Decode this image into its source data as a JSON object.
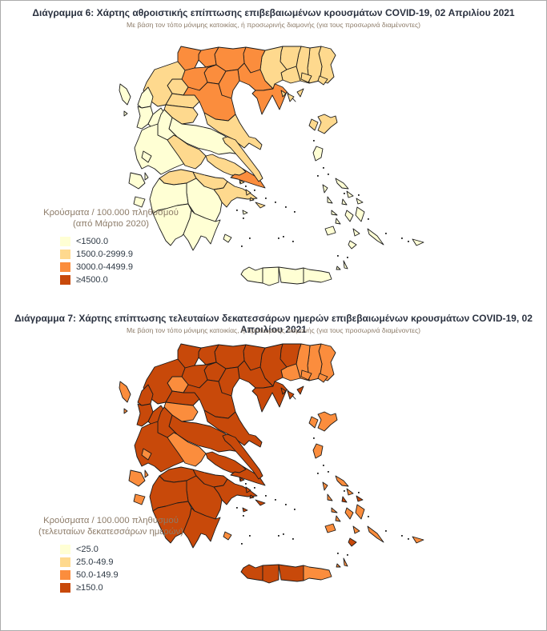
{
  "page": {
    "background": "#ffffff",
    "frame_border": "#ababab"
  },
  "palette": {
    "class1": "#FFFFD4",
    "class2": "#FED98E",
    "class3": "#FB8D3D",
    "class4": "#C8490A",
    "stroke": "#1a1a1a"
  },
  "maps": [
    {
      "title": "Διάγραμμα 6: Χάρτης αθροιστικής επίπτωσης επιβεβαιωμένων κρουσμάτων COVID-19, 02 Απριλίου 2021",
      "subtitle": "Με βάση τον τόπο μόνιμης κατοικίας, ή προσωρινής διαμονής (για τους προσωρινά διαμένοντες)",
      "legend": {
        "title_line1": "Κρούσματα / 100.000 πληθυσμού",
        "title_line2": "(από Μάρτιο 2020)",
        "items": [
          {
            "label": "<1500.0",
            "class_key": "class1"
          },
          {
            "label": "1500.0-2999.9",
            "class_key": "class2"
          },
          {
            "label": "3000.0-4499.9",
            "class_key": "class3"
          },
          {
            "label": "≥4500.0",
            "class_key": "class4"
          }
        ]
      }
    },
    {
      "title": "Διάγραμμα 7: Χάρτης επίπτωσης τελευταίων δεκατεσσάρων ημερών επιβεβαιωμένων κρουσμάτων COVID-19, 02 Απριλίου 2021",
      "subtitle": "Με βάση τον τόπο μόνιμης κατοικίας, ή προσωρινής διαμονής (για τους προσωρινά διαμένοντες)",
      "legend": {
        "title_line1": "Κρούσματα / 100.000 πληθυσμού",
        "title_line2": "(τελευταίων δεκατεσσάρων ημερών)",
        "items": [
          {
            "label": "<25.0",
            "class_key": "class1"
          },
          {
            "label": "25.0-49.9",
            "class_key": "class2"
          },
          {
            "label": "50.0-149.9",
            "class_key": "class3"
          },
          {
            "label": "≥150.0",
            "class_key": "class4"
          }
        ]
      }
    }
  ],
  "regions": [
    {
      "id": "evros",
      "map6": "class2",
      "map7": "class3"
    },
    {
      "id": "rodopi",
      "map6": "class2",
      "map7": "class3"
    },
    {
      "id": "xanthi",
      "map6": "class2",
      "map7": "class3"
    },
    {
      "id": "drama",
      "map6": "class2",
      "map7": "class4"
    },
    {
      "id": "kavala",
      "map6": "class2",
      "map7": "class3"
    },
    {
      "id": "serres",
      "map6": "class2",
      "map7": "class4"
    },
    {
      "id": "kilkis",
      "map6": "class3",
      "map7": "class4"
    },
    {
      "id": "pella",
      "map6": "class3",
      "map7": "class4"
    },
    {
      "id": "florina",
      "map6": "class3",
      "map7": "class4"
    },
    {
      "id": "kastoria",
      "map6": "class3",
      "map7": "class4"
    },
    {
      "id": "thessaloniki",
      "map6": "class3",
      "map7": "class4"
    },
    {
      "id": "chalkidiki",
      "map6": "class3",
      "map7": "class4"
    },
    {
      "id": "pieria",
      "map6": "class3",
      "map7": "class4"
    },
    {
      "id": "imathia",
      "map6": "class3",
      "map7": "class4"
    },
    {
      "id": "kozani",
      "map6": "class3",
      "map7": "class4"
    },
    {
      "id": "grevena",
      "map6": "class2",
      "map7": "class3"
    },
    {
      "id": "ioannina",
      "map6": "class2",
      "map7": "class4"
    },
    {
      "id": "thesprotia",
      "map6": "class1",
      "map7": "class4"
    },
    {
      "id": "preveza",
      "map6": "class1",
      "map7": "class4"
    },
    {
      "id": "arta",
      "map6": "class1",
      "map7": "class4"
    },
    {
      "id": "trikala",
      "map6": "class2",
      "map7": "class4"
    },
    {
      "id": "larissa",
      "map6": "class3",
      "map7": "class4"
    },
    {
      "id": "karditsa",
      "map6": "class2",
      "map7": "class3"
    },
    {
      "id": "magnesia",
      "map6": "class2",
      "map7": "class4"
    },
    {
      "id": "skiathos",
      "map6": "class2",
      "map7": "class4"
    },
    {
      "id": "skopelos",
      "map6": "class2",
      "map7": "class4"
    },
    {
      "id": "alonnisos",
      "map6": "class2",
      "map7": "class4"
    },
    {
      "id": "skyros",
      "map6": "class2",
      "map7": "class3"
    },
    {
      "id": "phthiotis",
      "map6": "class1",
      "map7": "class4"
    },
    {
      "id": "evrytania",
      "map6": "class1",
      "map7": "class4"
    },
    {
      "id": "aetolia",
      "map6": "class1",
      "map7": "class4"
    },
    {
      "id": "phocis",
      "map6": "class2",
      "map7": "class3"
    },
    {
      "id": "boeotia",
      "map6": "class2",
      "map7": "class4"
    },
    {
      "id": "attica",
      "map6": "class3",
      "map7": "class4"
    },
    {
      "id": "evia",
      "map6": "class2",
      "map7": "class4"
    },
    {
      "id": "achaia",
      "map6": "class2",
      "map7": "class4"
    },
    {
      "id": "corinthia",
      "map6": "class2",
      "map7": "class4"
    },
    {
      "id": "argolida",
      "map6": "class2",
      "map7": "class4"
    },
    {
      "id": "arcadia",
      "map6": "class1",
      "map7": "class4"
    },
    {
      "id": "ilia",
      "map6": "class1",
      "map7": "class4"
    },
    {
      "id": "messinia",
      "map6": "class1",
      "map7": "class4"
    },
    {
      "id": "laconia",
      "map6": "class1",
      "map7": "class4"
    },
    {
      "id": "corfu",
      "map6": "class1",
      "map7": "class3"
    },
    {
      "id": "paxoi",
      "map6": "class1",
      "map7": "class3"
    },
    {
      "id": "lefkada",
      "map6": "class1",
      "map7": "class3"
    },
    {
      "id": "kefalonia",
      "map6": "class1",
      "map7": "class3"
    },
    {
      "id": "ithaki",
      "map6": "class1",
      "map7": "class3"
    },
    {
      "id": "zakynthos",
      "map6": "class1",
      "map7": "class3"
    },
    {
      "id": "kythira",
      "map6": "class1",
      "map7": "class3"
    },
    {
      "id": "thasos",
      "map6": "class2",
      "map7": "class3"
    },
    {
      "id": "samothraki",
      "map6": "class2",
      "map7": "class3"
    },
    {
      "id": "lesbos",
      "map6": "class2",
      "map7": "class3"
    },
    {
      "id": "chios",
      "map6": "class1",
      "map7": "class3"
    },
    {
      "id": "ikaria",
      "map6": "class1",
      "map7": "class3"
    },
    {
      "id": "salamina",
      "map6": "class2",
      "map7": "class4"
    },
    {
      "id": "aegina",
      "map6": "class2",
      "map7": "class4"
    },
    {
      "id": "poros",
      "map6": "class2",
      "map7": "class4"
    },
    {
      "id": "hydra",
      "map6": "class2",
      "map7": "class4"
    },
    {
      "id": "spetses",
      "map6": "class1",
      "map7": "class4"
    },
    {
      "id": "kea",
      "map6": "class1",
      "map7": "class3"
    },
    {
      "id": "kythnos",
      "map6": "class1",
      "map7": "class3"
    },
    {
      "id": "andros",
      "map6": "class1",
      "map7": "class3"
    },
    {
      "id": "tinos",
      "map6": "class1",
      "map7": "class3"
    },
    {
      "id": "mykonos",
      "map6": "class1",
      "map7": "class4"
    },
    {
      "id": "syros",
      "map6": "class1",
      "map7": "class4"
    },
    {
      "id": "serifos",
      "map6": "class1",
      "map7": "class3"
    },
    {
      "id": "sifnos",
      "map6": "class1",
      "map7": "class3"
    },
    {
      "id": "milos",
      "map6": "class1",
      "map7": "class3"
    },
    {
      "id": "paros",
      "map6": "class1",
      "map7": "class3"
    },
    {
      "id": "naxos",
      "map6": "class1",
      "map7": "class3"
    },
    {
      "id": "amorgos",
      "map6": "class1",
      "map7": "class3"
    },
    {
      "id": "ios",
      "map6": "class1",
      "map7": "class3"
    },
    {
      "id": "santorini",
      "map6": "class1",
      "map7": "class4"
    },
    {
      "id": "karpathos",
      "map6": "class1",
      "map7": "class3"
    },
    {
      "id": "kasos",
      "map6": "class1",
      "map7": "class3"
    },
    {
      "id": "chania",
      "map6": "class1",
      "map7": "class4"
    },
    {
      "id": "rethymno",
      "map6": "class1",
      "map7": "class4"
    },
    {
      "id": "heraklion",
      "map6": "class1",
      "map7": "class4"
    },
    {
      "id": "lasithi",
      "map6": "class1",
      "map7": "class3"
    }
  ]
}
